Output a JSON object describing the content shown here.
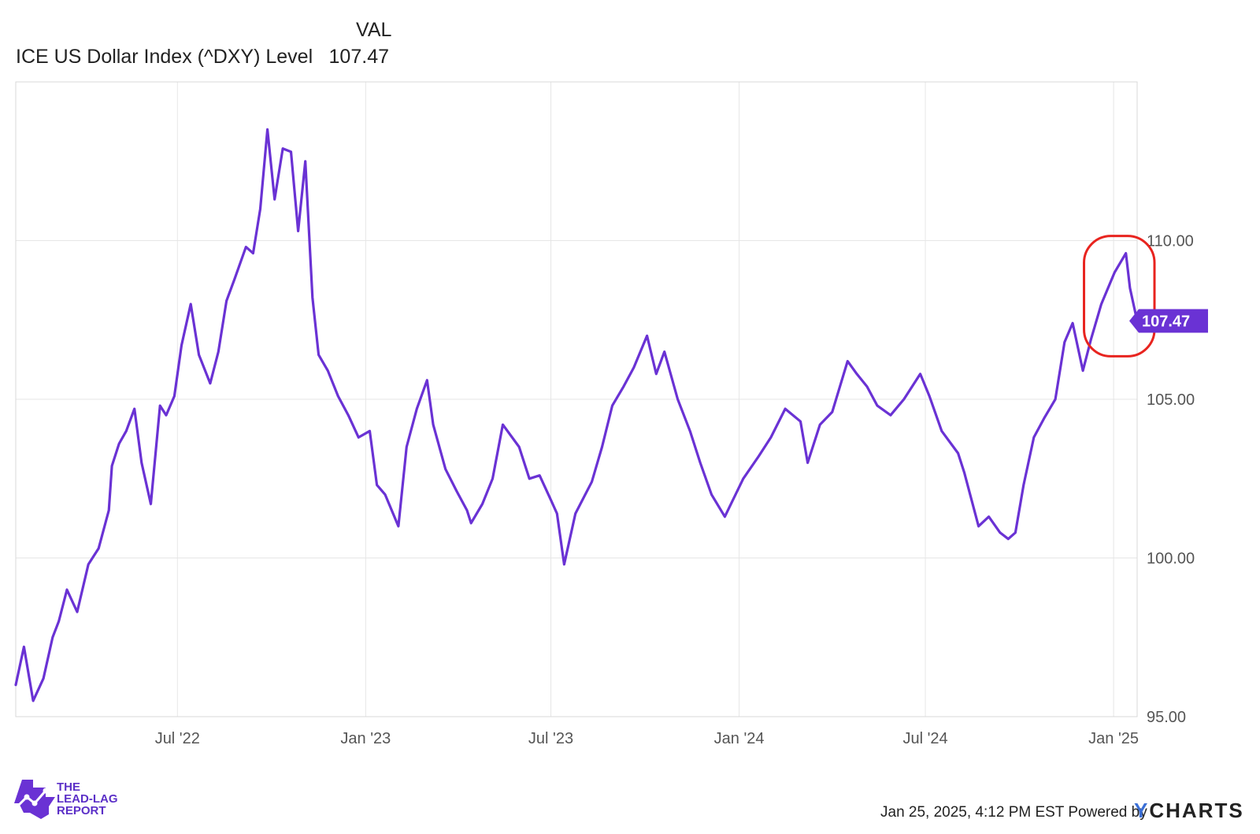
{
  "legend": {
    "column_header": "VAL",
    "series_name": "ICE US Dollar Index (^DXY) Level",
    "series_value": "107.47"
  },
  "footer": {
    "timestamp": "Jan 25, 2025, 4:12 PM EST Powered by",
    "ycharts_y": "Y",
    "ycharts_rest": "CHARTS"
  },
  "brand": {
    "line1": "THE",
    "line2": "LEAD-LAG",
    "line3": "REPORT"
  },
  "colors": {
    "line": "#6a32d4",
    "highlight_circle": "#e8241f",
    "grid": "#e6e6e6",
    "axis_text": "#555555"
  },
  "chart_data": {
    "type": "line",
    "title": "",
    "xlabel": "",
    "ylabel": "",
    "ylim": [
      95,
      115
    ],
    "xlim": [
      "2022-01-24",
      "2025-01-24"
    ],
    "grid": true,
    "y_ticks": [
      "95.00",
      "100.00",
      "105.00",
      "110.00"
    ],
    "x_ticks": [
      {
        "label": "Jul '22",
        "date": "2022-07-01"
      },
      {
        "label": "Jan '23",
        "date": "2023-01-01"
      },
      {
        "label": "Jul '23",
        "date": "2023-07-01"
      },
      {
        "label": "Jan '24",
        "date": "2024-01-01"
      },
      {
        "label": "Jul '24",
        "date": "2024-07-01"
      },
      {
        "label": "Jan '25",
        "date": "2025-01-01"
      }
    ],
    "last_value_label": "107.47",
    "highlight": {
      "type": "circle",
      "from": "2024-12-20",
      "to": "2025-01-24",
      "color": "#e8241f"
    },
    "series": [
      {
        "name": "ICE US Dollar Index (^DXY) Level",
        "x": [
          "2022-01-24",
          "2022-02-01",
          "2022-02-10",
          "2022-02-20",
          "2022-03-01",
          "2022-03-07",
          "2022-03-15",
          "2022-03-25",
          "2022-04-05",
          "2022-04-15",
          "2022-04-25",
          "2022-04-28",
          "2022-05-05",
          "2022-05-12",
          "2022-05-20",
          "2022-05-27",
          "2022-06-05",
          "2022-06-14",
          "2022-06-20",
          "2022-06-28",
          "2022-07-05",
          "2022-07-14",
          "2022-07-22",
          "2022-08-02",
          "2022-08-10",
          "2022-08-18",
          "2022-08-26",
          "2022-09-06",
          "2022-09-13",
          "2022-09-20",
          "2022-09-27",
          "2022-10-04",
          "2022-10-12",
          "2022-10-20",
          "2022-10-27",
          "2022-11-03",
          "2022-11-10",
          "2022-11-16",
          "2022-11-25",
          "2022-12-05",
          "2022-12-15",
          "2022-12-25",
          "2023-01-05",
          "2023-01-12",
          "2023-01-20",
          "2023-02-02",
          "2023-02-10",
          "2023-02-20",
          "2023-03-02",
          "2023-03-08",
          "2023-03-20",
          "2023-03-31",
          "2023-04-10",
          "2023-04-14",
          "2023-04-25",
          "2023-05-05",
          "2023-05-15",
          "2023-05-31",
          "2023-06-10",
          "2023-06-20",
          "2023-06-30",
          "2023-07-07",
          "2023-07-14",
          "2023-07-25",
          "2023-08-10",
          "2023-08-20",
          "2023-08-30",
          "2023-09-10",
          "2023-09-20",
          "2023-10-03",
          "2023-10-12",
          "2023-10-20",
          "2023-11-02",
          "2023-11-14",
          "2023-11-24",
          "2023-12-05",
          "2023-12-18",
          "2023-12-27",
          "2024-01-05",
          "2024-01-20",
          "2024-02-01",
          "2024-02-15",
          "2024-03-01",
          "2024-03-08",
          "2024-03-20",
          "2024-04-01",
          "2024-04-16",
          "2024-04-25",
          "2024-05-05",
          "2024-05-15",
          "2024-05-28",
          "2024-06-10",
          "2024-06-26",
          "2024-07-05",
          "2024-07-17",
          "2024-08-02",
          "2024-08-08",
          "2024-08-22",
          "2024-09-01",
          "2024-09-12",
          "2024-09-20",
          "2024-09-27",
          "2024-10-05",
          "2024-10-15",
          "2024-10-25",
          "2024-11-05",
          "2024-11-14",
          "2024-11-22",
          "2024-12-02",
          "2024-12-10",
          "2024-12-20",
          "2025-01-02",
          "2025-01-13",
          "2025-01-17",
          "2025-01-24"
        ],
        "values": [
          96.0,
          97.2,
          95.5,
          96.2,
          97.5,
          98.0,
          99.0,
          98.3,
          99.8,
          100.3,
          101.5,
          102.9,
          103.6,
          104.0,
          104.7,
          103.0,
          101.7,
          104.8,
          104.5,
          105.1,
          106.7,
          108.0,
          106.4,
          105.5,
          106.5,
          108.1,
          108.8,
          109.8,
          109.6,
          111.0,
          113.5,
          111.3,
          112.9,
          112.8,
          110.3,
          112.5,
          108.2,
          106.4,
          105.9,
          105.1,
          104.5,
          103.8,
          104.0,
          102.3,
          102.0,
          101.0,
          103.5,
          104.7,
          105.6,
          104.2,
          102.8,
          102.1,
          101.5,
          101.1,
          101.7,
          102.5,
          104.2,
          103.5,
          102.5,
          102.6,
          101.9,
          101.4,
          99.8,
          101.4,
          102.4,
          103.5,
          104.8,
          105.4,
          106.0,
          107.0,
          105.8,
          106.5,
          105.0,
          104.0,
          103.0,
          102.0,
          101.3,
          101.9,
          102.5,
          103.2,
          103.8,
          104.7,
          104.3,
          103.0,
          104.2,
          104.6,
          106.2,
          105.8,
          105.4,
          104.8,
          104.5,
          105.0,
          105.8,
          105.1,
          104.0,
          103.3,
          102.7,
          101.0,
          101.3,
          100.8,
          100.6,
          100.8,
          102.3,
          103.8,
          104.4,
          105.0,
          106.8,
          107.4,
          105.9,
          106.9,
          108.0,
          109.0,
          109.6,
          108.5,
          107.47
        ]
      }
    ]
  }
}
